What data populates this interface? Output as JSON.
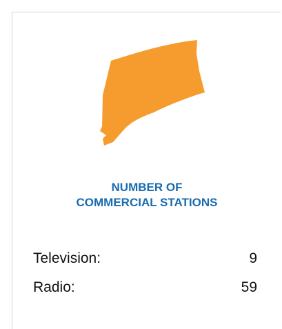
{
  "heading": {
    "lines": [
      "NUMBER OF",
      "COMMERCIAL STATIONS"
    ]
  },
  "rows": [
    {
      "label": "Television:",
      "value": 9
    },
    {
      "label": "Radio:",
      "value": 59
    }
  ]
}
